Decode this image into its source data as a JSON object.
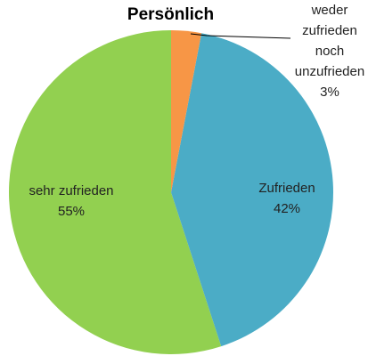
{
  "chart_data": {
    "type": "pie",
    "title": "Persönlich",
    "categories": [
      "weder zufrieden noch unzufrieden",
      "Zufrieden",
      "sehr zufrieden"
    ],
    "values": [
      3,
      42,
      55
    ],
    "value_labels": [
      "3%",
      "42%",
      "55%"
    ],
    "colors": [
      "#f79646",
      "#4bacc6",
      "#92d050"
    ]
  }
}
